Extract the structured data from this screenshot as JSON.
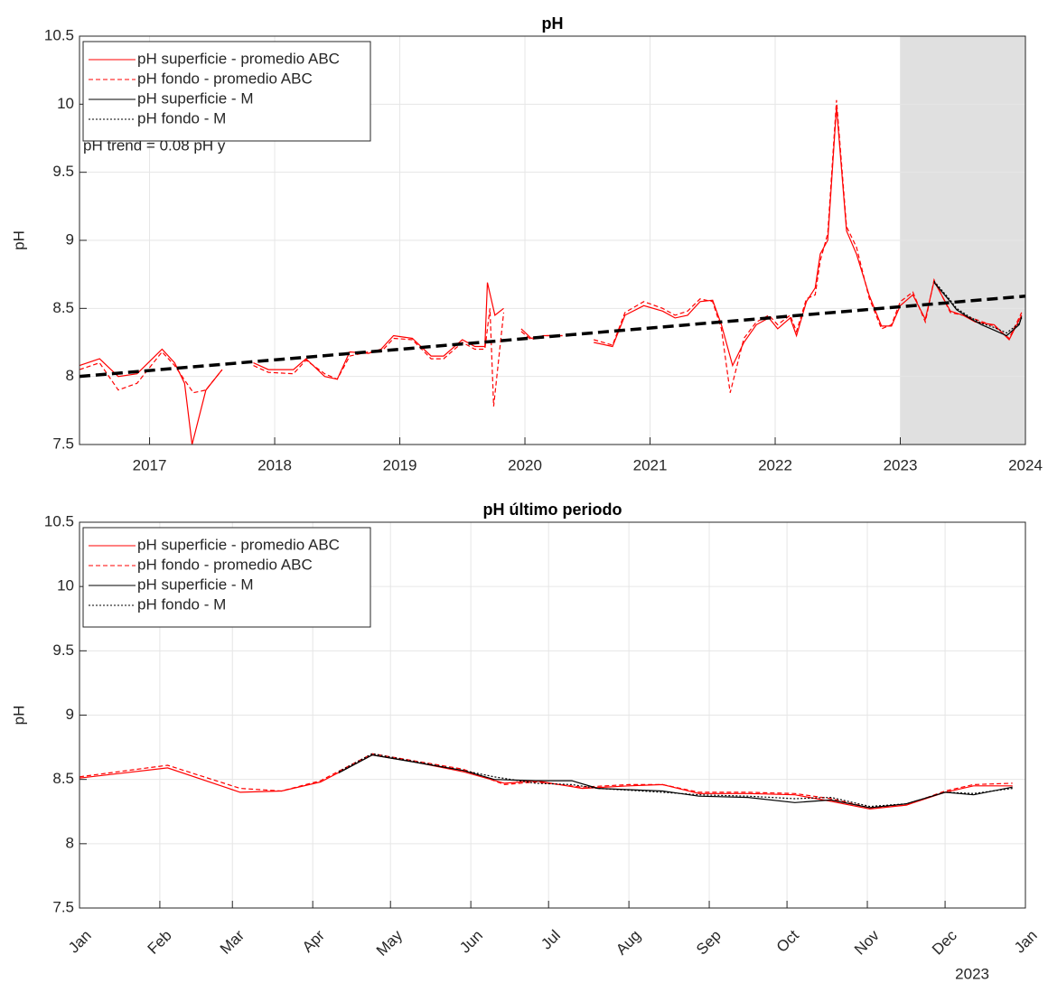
{
  "chart_data": [
    {
      "type": "line",
      "title": "pH",
      "ylabel": "pH",
      "grid": true,
      "legend": "upper left",
      "annotation": "pH trend = 0.08 pH y",
      "xlim": [
        2016.44,
        2024
      ],
      "xticks": [
        2017,
        2018,
        2019,
        2020,
        2021,
        2022,
        2023,
        2024
      ],
      "ylim": [
        7.5,
        10.5
      ],
      "yticks": [
        7.5,
        8,
        8.5,
        9,
        9.5,
        10,
        10.5
      ],
      "shade": [
        2023,
        2024
      ],
      "shade_color": "#e0e0e0",
      "trend": {
        "x": [
          2016.44,
          2024
        ],
        "values": [
          8.0,
          8.59
        ],
        "color": "#000000"
      },
      "series": [
        {
          "name": "pH superficie - promedio ABC",
          "color": "#ff0000",
          "dash": "solid",
          "x": [
            2016.44,
            2016.6,
            2016.75,
            2016.9,
            2017.1,
            2017.2,
            2017.28,
            2017.34,
            2017.45,
            2017.58,
            null,
            2017.83,
            2017.95,
            2018.15,
            2018.25,
            2018.4,
            2018.5,
            2018.6,
            2018.75,
            2018.85,
            2018.95,
            2019.1,
            2019.25,
            2019.35,
            2019.5,
            2019.6,
            2019.68,
            2019.7,
            2019.76,
            2019.83,
            null,
            2019.97,
            2020.05,
            2020.15,
            2020.3,
            null,
            2020.55,
            2020.7,
            2020.8,
            2020.95,
            2021.1,
            2021.2,
            2021.3,
            2021.4,
            2021.5,
            2021.57,
            2021.66,
            2021.75,
            2021.85,
            2021.95,
            2022.02,
            2022.12,
            2022.17,
            2022.25,
            2022.32,
            2022.36,
            2022.42,
            2022.49,
            2022.57,
            2022.65,
            2022.75,
            2022.85,
            2022.93,
            2023.0,
            2023.1,
            2023.2,
            2023.27,
            2023.4,
            2023.5,
            2023.6,
            2023.75,
            2023.87,
            2023.97
          ],
          "values": [
            8.08,
            8.13,
            8.0,
            8.02,
            8.2,
            8.1,
            7.95,
            7.5,
            7.9,
            8.05,
            null,
            8.1,
            8.05,
            8.05,
            8.13,
            8.0,
            7.98,
            8.18,
            8.17,
            8.2,
            8.3,
            8.28,
            8.15,
            8.15,
            8.27,
            8.22,
            8.22,
            8.69,
            8.45,
            8.5,
            null,
            8.35,
            8.28,
            8.3,
            8.3,
            null,
            8.25,
            8.22,
            8.45,
            8.52,
            8.48,
            8.43,
            8.45,
            8.55,
            8.56,
            8.38,
            8.08,
            8.25,
            8.38,
            8.43,
            8.35,
            8.43,
            8.3,
            8.55,
            8.65,
            8.9,
            9.0,
            9.98,
            9.07,
            8.9,
            8.6,
            8.37,
            8.37,
            8.52,
            8.6,
            8.42,
            8.7,
            8.48,
            8.45,
            8.4,
            8.38,
            8.27,
            8.45
          ]
        },
        {
          "name": "pH fondo - promedio ABC",
          "color": "#ff0000",
          "dash": "dashed",
          "x": [
            2016.44,
            2016.6,
            2016.75,
            2016.9,
            2017.1,
            2017.2,
            2017.35,
            2017.45,
            2017.58,
            null,
            2017.83,
            2017.95,
            2018.15,
            2018.25,
            2018.4,
            2018.5,
            2018.6,
            2018.75,
            2018.85,
            2018.95,
            2019.1,
            2019.25,
            2019.35,
            2019.5,
            2019.6,
            2019.68,
            2019.72,
            2019.75,
            2019.83,
            null,
            2019.97,
            2020.05,
            2020.15,
            2020.3,
            null,
            2020.55,
            2020.7,
            2020.8,
            2020.95,
            2021.1,
            2021.2,
            2021.3,
            2021.4,
            2021.5,
            2021.57,
            2021.64,
            2021.75,
            2021.85,
            2021.95,
            2022.02,
            2022.12,
            2022.17,
            2022.25,
            2022.32,
            2022.36,
            2022.42,
            2022.49,
            2022.57,
            2022.65,
            2022.75,
            2022.85,
            2022.93,
            2023.0,
            2023.1,
            2023.2,
            2023.27,
            2023.4,
            2023.5,
            2023.6,
            2023.75,
            2023.87,
            2023.97
          ],
          "values": [
            8.05,
            8.1,
            7.9,
            7.95,
            8.18,
            8.08,
            7.88,
            7.9,
            8.05,
            null,
            8.08,
            8.03,
            8.02,
            8.12,
            8.02,
            7.98,
            8.15,
            8.18,
            8.18,
            8.28,
            8.27,
            8.13,
            8.13,
            8.25,
            8.2,
            8.2,
            8.5,
            7.78,
            8.47,
            null,
            8.33,
            8.27,
            8.3,
            8.3,
            null,
            8.27,
            8.23,
            8.47,
            8.55,
            8.5,
            8.45,
            8.48,
            8.57,
            8.55,
            8.35,
            7.88,
            8.28,
            8.4,
            8.45,
            8.38,
            8.45,
            8.33,
            8.57,
            8.6,
            8.85,
            9.05,
            10.03,
            9.1,
            8.95,
            8.58,
            8.35,
            8.38,
            8.55,
            8.62,
            8.4,
            8.71,
            8.47,
            8.45,
            8.42,
            8.37,
            8.28,
            8.47
          ]
        },
        {
          "name": "pH superficie - M",
          "color": "#000000",
          "dash": "solid",
          "x": [
            2023.27,
            2023.4,
            2023.45,
            2023.55,
            2023.65,
            2023.75,
            2023.85,
            2023.95,
            2023.97
          ],
          "values": [
            8.69,
            8.55,
            8.49,
            8.43,
            8.38,
            8.34,
            8.3,
            8.38,
            8.44
          ]
        },
        {
          "name": "pH fondo - M",
          "color": "#000000",
          "dash": "dotted",
          "x": [
            2023.27,
            2023.4,
            2023.45,
            2023.55,
            2023.65,
            2023.75,
            2023.85,
            2023.95,
            2023.97
          ],
          "values": [
            8.7,
            8.56,
            8.5,
            8.44,
            8.39,
            8.36,
            8.32,
            8.39,
            8.43
          ]
        }
      ]
    },
    {
      "type": "line",
      "title": "pH último periodo",
      "ylabel": "pH",
      "grid": true,
      "legend": "upper left",
      "x_year": "2023",
      "xlim": [
        0,
        365
      ],
      "xticks": [
        {
          "value": 0,
          "label": "Jan"
        },
        {
          "value": 31,
          "label": "Feb"
        },
        {
          "value": 59,
          "label": "Mar"
        },
        {
          "value": 90,
          "label": "Apr"
        },
        {
          "value": 120,
          "label": "May"
        },
        {
          "value": 151,
          "label": "Jun"
        },
        {
          "value": 181,
          "label": "Jul"
        },
        {
          "value": 212,
          "label": "Aug"
        },
        {
          "value": 243,
          "label": "Sep"
        },
        {
          "value": 273,
          "label": "Oct"
        },
        {
          "value": 304,
          "label": "Nov"
        },
        {
          "value": 334,
          "label": "Dec"
        },
        {
          "value": 365,
          "label": "Jan"
        }
      ],
      "ylim": [
        7.5,
        10.5
      ],
      "yticks": [
        7.5,
        8,
        8.5,
        9,
        9.5,
        10,
        10.5
      ],
      "series": [
        {
          "name": "pH superficie - promedio ABC",
          "color": "#ff0000",
          "dash": "solid",
          "x": [
            0,
            34,
            62,
            78,
            93,
            113,
            128,
            148,
            164,
            176,
            194,
            212,
            225,
            239,
            258,
            276,
            290,
            305,
            319,
            334,
            345,
            360
          ],
          "values": [
            8.51,
            8.59,
            8.4,
            8.41,
            8.48,
            8.69,
            8.64,
            8.56,
            8.47,
            8.49,
            8.43,
            8.45,
            8.46,
            8.39,
            8.39,
            8.38,
            8.33,
            8.27,
            8.3,
            8.4,
            8.45,
            8.45
          ]
        },
        {
          "name": "pH fondo - promedio ABC",
          "color": "#ff0000",
          "dash": "dashed",
          "x": [
            0,
            34,
            62,
            78,
            93,
            113,
            148,
            164,
            176,
            194,
            212,
            225,
            239,
            258,
            276,
            290,
            305,
            319,
            334,
            345,
            360
          ],
          "values": [
            8.52,
            8.61,
            8.43,
            8.41,
            8.49,
            8.7,
            8.58,
            8.46,
            8.48,
            8.44,
            8.46,
            8.46,
            8.4,
            8.4,
            8.39,
            8.35,
            8.28,
            8.3,
            8.41,
            8.46,
            8.47
          ]
        },
        {
          "name": "pH superficie - M",
          "color": "#000000",
          "dash": "solid",
          "x": [
            100,
            113,
            148,
            160,
            176,
            190,
            200,
            225,
            239,
            258,
            276,
            290,
            305,
            319,
            334,
            345,
            360
          ],
          "values": [
            8.55,
            8.69,
            8.57,
            8.5,
            8.49,
            8.49,
            8.43,
            8.41,
            8.37,
            8.36,
            8.32,
            8.34,
            8.28,
            8.31,
            8.4,
            8.38,
            8.44
          ]
        },
        {
          "name": "pH fondo - M",
          "color": "#000000",
          "dash": "dotted",
          "x": [
            100,
            113,
            148,
            160,
            176,
            190,
            200,
            225,
            239,
            258,
            276,
            290,
            305,
            319,
            334,
            345,
            360
          ],
          "values": [
            8.56,
            8.7,
            8.57,
            8.52,
            8.47,
            8.46,
            8.43,
            8.4,
            8.38,
            8.37,
            8.35,
            8.36,
            8.29,
            8.31,
            8.4,
            8.39,
            8.43
          ]
        }
      ]
    }
  ]
}
